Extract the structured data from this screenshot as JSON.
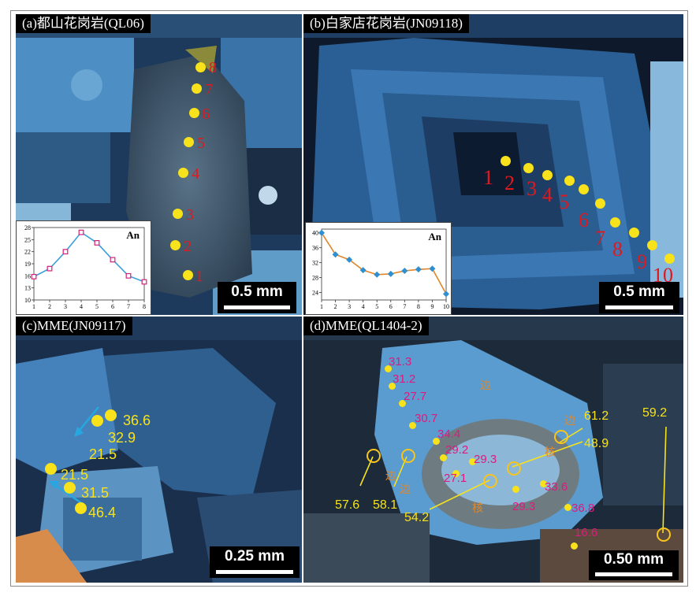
{
  "panels": {
    "a": {
      "title": "(a)都山花岗岩(QL06)",
      "scale_label": "0.5 mm",
      "spot_labels": [
        "1",
        "2",
        "3",
        "4",
        "5",
        "6",
        "7",
        "8"
      ]
    },
    "b": {
      "title": "(b)白家店花岗岩(JN09118)",
      "scale_label": "0.5 mm",
      "spot_labels": [
        "1",
        "2",
        "3",
        "4",
        "5",
        "6",
        "7",
        "8",
        "9",
        "10"
      ]
    },
    "c": {
      "title": "(c)MME(JN09117)",
      "scale_label": "0.25 mm",
      "values": [
        "36.6",
        "32.9",
        "21.5",
        "21.5",
        "31.5",
        "46.4"
      ]
    },
    "d": {
      "title": "(d)MME(QL1404-2)",
      "scale_label": "0.50 mm",
      "magenta_values": [
        "31.3",
        "31.2",
        "27.7",
        "30.7",
        "34.4",
        "29.2",
        "29.3",
        "27.1",
        "33.6",
        "29.3",
        "36.8",
        "16.6"
      ],
      "yellow_values": [
        "61.2",
        "59.2",
        "48.9",
        "57.6",
        "58.1",
        "54.2"
      ],
      "edge_labels": [
        "边",
        "边",
        "核",
        "边",
        "边",
        "核"
      ]
    }
  },
  "chart_data": [
    {
      "type": "line",
      "legend": "An",
      "x": [
        1,
        2,
        3,
        4,
        5,
        6,
        7,
        8
      ],
      "values": [
        15.8,
        17.8,
        22.0,
        26.8,
        24.2,
        20.0,
        16.0,
        14.5
      ],
      "ylim": [
        10,
        28
      ],
      "yticks": [
        "10",
        "13",
        "16",
        "19",
        "22",
        "25",
        "28"
      ],
      "xticks": [
        "1",
        "2",
        "3",
        "4",
        "5",
        "6",
        "7",
        "8"
      ],
      "line_color": "#3aa0d8",
      "marker_color": "#d0207a"
    },
    {
      "type": "line",
      "legend": "An",
      "x": [
        1,
        2,
        3,
        4,
        5,
        6,
        7,
        8,
        9,
        10
      ],
      "values": [
        40.0,
        34.2,
        32.8,
        30.0,
        28.8,
        29.0,
        29.8,
        30.2,
        30.4,
        23.6
      ],
      "ylim": [
        22,
        41
      ],
      "yticks": [
        "24",
        "28",
        "32",
        "36",
        "40"
      ],
      "xticks": [
        "1",
        "2",
        "3",
        "4",
        "5",
        "6",
        "7",
        "8",
        "9",
        "10"
      ],
      "line_color": "#e0872a",
      "marker_color": "#2f8fd0"
    }
  ]
}
